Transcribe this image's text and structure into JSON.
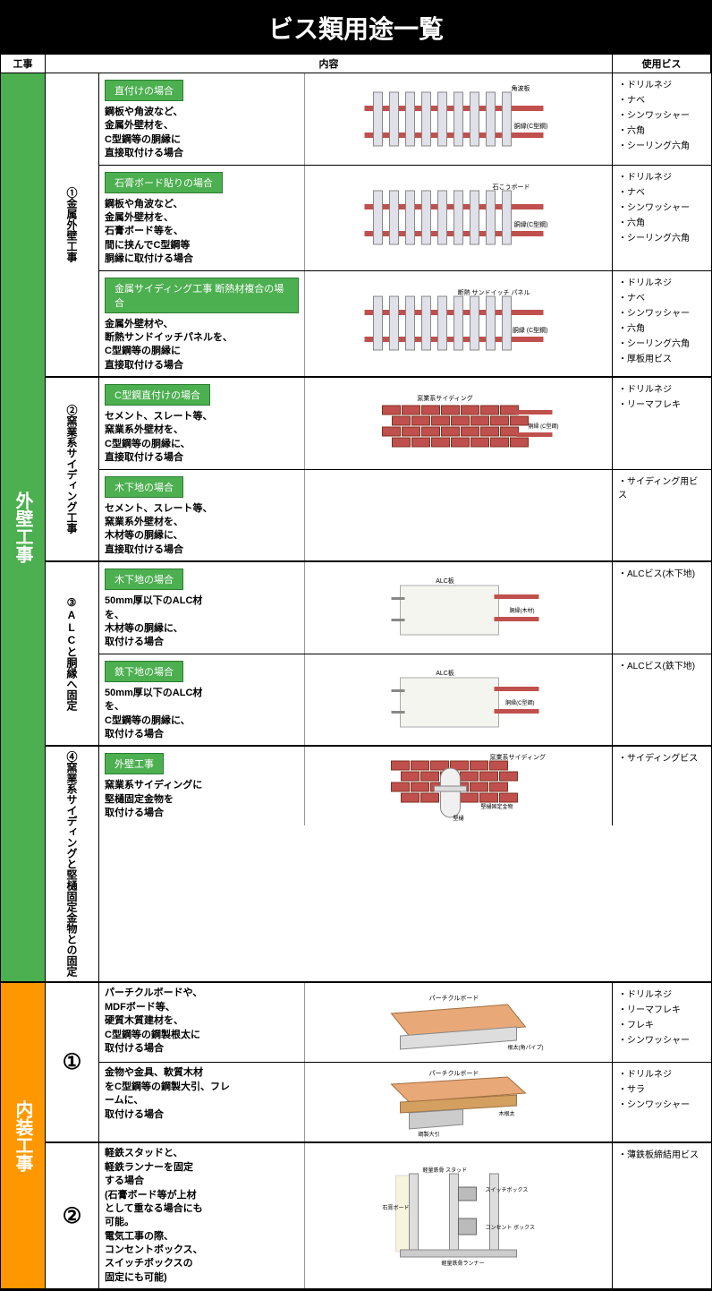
{
  "title": "ビス類用途一覧",
  "headers": {
    "kouji": "工事",
    "naiyou": "内容",
    "bis": "使用ビス"
  },
  "colors": {
    "green": "#4caf50",
    "orange": "#ff9800",
    "pill_border": "#2e7d32"
  },
  "categories": [
    {
      "name": "外壁工事",
      "color": "green",
      "sections": [
        {
          "subcat": "①金属外壁工事",
          "rows": [
            {
              "pill": "直付けの場合",
              "desc": "鋼板や角波など、\n金属外壁材を、\nC型鋼等の胴縁に\n直接取付ける場合",
              "diag_labels": [
                "角波板",
                "胴縁(C型鋼)"
              ],
              "bis": [
                "・ドリルネジ",
                "・ナベ",
                "・シンワッシャー",
                "・六角",
                "・シーリング六角"
              ]
            },
            {
              "pill": "石膏ボード貼りの場合",
              "desc": "鋼板や角波など、\n金属外壁材を、\n石膏ボード等を、\n間に挟んでC型鋼等\n胴縁に取付ける場合",
              "diag_labels": [
                "石こうボード",
                "胴縁(C型鋼)"
              ],
              "bis": [
                "・ドリルネジ",
                "・ナベ",
                "・シンワッシャー",
                "・六角",
                "・シーリング六角"
              ]
            },
            {
              "pill": "金属サイディング工事 断熱材複合の場合",
              "desc": "金属外壁材や、\n断熱サンドイッチパネルを、\nC型鋼等の胴縁に\n直接取付ける場合",
              "diag_labels": [
                "断熱\nサンドイッチ\nパネル",
                "胴縁\n(C型鋼)"
              ],
              "bis": [
                "・ドリルネジ",
                "・ナベ",
                "・シンワッシャー",
                "・六角",
                "・シーリング六角",
                "・厚板用ビス"
              ]
            }
          ]
        },
        {
          "subcat": "②窯業系サイディング工事",
          "rows": [
            {
              "pill": "C型鋼直付けの場合",
              "desc": "セメント、スレート等、\n窯業系外壁材を、\nC型鋼等の胴縁に、\n直接取付ける場合",
              "diag_labels": [
                "窯業系サイディング",
                "胴縁\n(C型鋼)"
              ],
              "img_merged_down": true,
              "bis": [
                "・ドリルネジ",
                "・リーマフレキ"
              ]
            },
            {
              "pill": "木下地の場合",
              "desc": "セメント、スレート等、\n窯業系外壁材を、\n木材等の胴縁に、\n直接取付ける場合",
              "diag_labels": [],
              "img_merge_target": true,
              "bis": [
                "・サイディング用ビス"
              ]
            }
          ]
        },
        {
          "subcat": "③ALCと胴縁へ固定",
          "rows": [
            {
              "pill": "木下地の場合",
              "desc": "50mm厚以下のALC材\nを、\n木材等の胴縁に、\n取付ける場合",
              "diag_labels": [
                "ALC板",
                "胴縁(木材)"
              ],
              "bis": [
                "・ALCビス(木下地)"
              ]
            },
            {
              "pill": "鉄下地の場合",
              "desc": "50mm厚以下のALC材\nを、\nC型鋼等の胴縁に、\n取付ける場合",
              "diag_labels": [
                "ALC板",
                "胴縁(C型鋼)"
              ],
              "bis": [
                "・ALCビス(鉄下地)"
              ]
            }
          ]
        },
        {
          "subcat": "④窯業系サイディングと堅樋固定金物との固定",
          "rows": [
            {
              "pill": "外壁工事",
              "desc": "窯業系サイディングに\n堅樋固定金物を\n取付ける場合",
              "diag_labels": [
                "窯業系サイディング",
                "堅樋固定金物",
                "堅樋"
              ],
              "bis": [
                "・サイディングビス"
              ]
            }
          ]
        }
      ]
    },
    {
      "name": "内装工事",
      "color": "orange",
      "sections": [
        {
          "subcat": "①",
          "num_only": true,
          "rows": [
            {
              "pill": "",
              "desc": "パーチクルボードや、\nMDFボード等、\n硬質木質建材を、\nC型鋼等の鋼製根太に\n取付ける場合",
              "diag_labels": [
                "パーチクルボード",
                "根太(角パイプ)"
              ],
              "bis": [
                "・ドリルネジ",
                "・リーマフレキ",
                "・フレキ",
                "・シンワッシャー"
              ]
            },
            {
              "pill": "",
              "desc": "金物や金具、軟質木材\nをC型鋼等の鋼製大引、フレ\nームに、\n取付ける場合",
              "diag_labels": [
                "パーチクルボード",
                "鋼製大引",
                "木根太"
              ],
              "bis": [
                "・ドリルネジ",
                "・サラ",
                "・シンワッシャー"
              ]
            }
          ]
        },
        {
          "subcat": "②",
          "num_only": true,
          "rows": [
            {
              "pill": "",
              "desc": "軽鉄スタッドと、\n軽鉄ランナーを固定\nする場合\n(石膏ボード等が上材\nとして重なる場合にも\n可能。\n電気工事の際、\nコンセントボックス、\nスイッチボックスの\n固定にも可能)",
              "diag_labels": [
                "軽量鉄骨\nスタッド",
                "スイッチボックス",
                "石膏ボード",
                "コンセント\nボックス",
                "軽量鉄骨ランナー"
              ],
              "bis": [
                "・薄鉄板締結用ビス"
              ]
            }
          ]
        }
      ]
    }
  ]
}
